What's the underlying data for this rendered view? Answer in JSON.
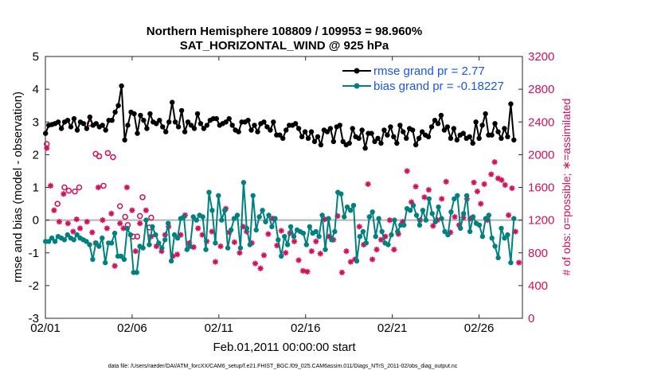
{
  "chart_data": {
    "type": "line",
    "title_line1": "Northern Hemisphere 108809 / 109953 = 98.960%",
    "title_line2": "SAT_HORIZONTAL_WIND @ 925 hPa",
    "xlabel": "Feb.01,2011 00:00:00 start",
    "ylabel": "rmse and bias (model - observation)",
    "ylabel_right": "# of obs: o=possible; ∗=assimilated",
    "footnote": "data file: /Users/raeder/DAI/ATM_forcXX/CAM6_setup/f.e21.FHIST_BGC.f09_025.CAM6assim.011/Diags_NTrS_2011-02/obs_diag_output.nc",
    "x_ticks": [
      "02/01",
      "02/06",
      "02/11",
      "02/16",
      "02/21",
      "02/26"
    ],
    "x_tick_values": [
      0,
      5,
      10,
      15,
      20,
      25
    ],
    "xlim": [
      0,
      27.5
    ],
    "y_ticks": [
      "5",
      "4",
      "3",
      "2",
      "1",
      "0",
      "-1",
      "-2",
      "-3"
    ],
    "ylim": [
      -3,
      5
    ],
    "y_right_ticks": [
      "3200",
      "2800",
      "2400",
      "2000",
      "1600",
      "1200",
      "800",
      "400",
      "0"
    ],
    "ylim_right": [
      0,
      3200
    ],
    "zero_line": 0,
    "colors": {
      "rmse": "#000000",
      "bias": "#008080",
      "obs": "#d0105a",
      "legend_text": "#1a56e8",
      "zero": "#b4b4b4"
    },
    "series": [
      {
        "name": "rmse grand pr = 2.77",
        "values": [
          2.65,
          2.9,
          2.92,
          2.95,
          3.0,
          2.8,
          3.0,
          3.05,
          2.85,
          3.1,
          2.75,
          3.0,
          2.95,
          2.8,
          3.15,
          2.9,
          2.95,
          2.85,
          2.9,
          2.75,
          3.05,
          3.05,
          3.3,
          3.5,
          4.1,
          2.45,
          2.9,
          3.3,
          3.25,
          2.65,
          3.2,
          3.05,
          2.8,
          3.25,
          3.0,
          2.95,
          3.05,
          2.85,
          2.7,
          3.0,
          3.6,
          3.0,
          2.85,
          3.35,
          2.7,
          3.0,
          2.9,
          2.8,
          3.25,
          2.95,
          2.8,
          2.9,
          3.05,
          3.1,
          3.1,
          2.9,
          2.95,
          3.0,
          3.1,
          2.9,
          2.75,
          2.7,
          3.0,
          3.0,
          3.05,
          2.75,
          2.9,
          2.7,
          2.95,
          3.0,
          2.85,
          2.75,
          3.0,
          2.6,
          2.6,
          2.5,
          2.75,
          2.9,
          2.9,
          2.95,
          2.8,
          2.55,
          2.7,
          2.5,
          2.7,
          2.4,
          2.55,
          2.3,
          2.75,
          2.7,
          2.8,
          2.4,
          2.85,
          2.9,
          2.4,
          2.3,
          2.35,
          2.8,
          2.55,
          2.5,
          2.75,
          2.2,
          2.65,
          2.65,
          2.4,
          2.5,
          2.35,
          2.75,
          2.6,
          2.85,
          2.55,
          2.35,
          2.9,
          2.7,
          2.5,
          2.8,
          2.75,
          2.3,
          2.5,
          2.7,
          2.6,
          2.55,
          2.85,
          3.05,
          2.95,
          3.2,
          2.75,
          2.85,
          2.5,
          2.8,
          2.45,
          2.6,
          2.65,
          2.5,
          2.55,
          2.35,
          3.0,
          2.5,
          2.9,
          3.25,
          2.6,
          2.6,
          2.95,
          2.7,
          2.5,
          2.8,
          2.55,
          3.55,
          2.45
        ]
      },
      {
        "name": "bias grand pr = -0.18227",
        "values": [
          -0.65,
          -0.65,
          -0.55,
          -0.65,
          -0.5,
          -0.55,
          -0.6,
          -0.45,
          -0.55,
          -0.6,
          -0.45,
          -0.55,
          -0.6,
          -0.65,
          -0.75,
          -1.2,
          -0.7,
          -0.8,
          -0.55,
          -1.3,
          -0.7,
          -0.7,
          -0.4,
          -1.1,
          -1.1,
          -1.2,
          -0.25,
          -0.45,
          -1.6,
          -1.6,
          -0.8,
          -0.85,
          0.0,
          -0.75,
          -0.2,
          -0.45,
          -0.7,
          -0.85,
          -0.6,
          -0.1,
          -1.25,
          -0.45,
          -0.55,
          0.05,
          0.1,
          -0.9,
          -0.8,
          0.1,
          0.0,
          0.15,
          0.1,
          -0.9,
          0.85,
          0.3,
          -0.7,
          0.75,
          0.0,
          0.3,
          -0.85,
          -0.3,
          0.05,
          0.15,
          -0.85,
          1.15,
          -0.25,
          -0.75,
          0.75,
          -0.3,
          0.1,
          0.3,
          -0.05,
          0.15,
          -0.2,
          0.05,
          -0.6,
          -1.1,
          -0.5,
          -0.75,
          -0.2,
          -0.5,
          -0.3,
          -0.35,
          -0.4,
          -0.75,
          -0.2,
          -0.4,
          -0.35,
          -0.5,
          0.15,
          -0.9,
          0.05,
          -0.6,
          -0.35,
          0.85,
          0.8,
          0.1,
          0.4,
          0.3,
          0.45,
          -1.25,
          -0.5,
          -0.35,
          -0.7,
          0.1,
          0.25,
          -0.5,
          0.05,
          -0.35,
          -0.7,
          -0.75,
          -0.45,
          0.0,
          -0.35,
          -0.15,
          -0.15,
          0.35,
          0.3,
          0.45,
          0.15,
          -0.15,
          0.3,
          0.0,
          0.65,
          0.2,
          -0.05,
          0.4,
          0.05,
          -0.35,
          -0.45,
          0.25,
          0.65,
          0.75,
          -0.25,
          0.2,
          0.75,
          -0.35,
          0.1,
          -0.1,
          -0.15,
          -0.5,
          0.05,
          0.15,
          -0.55,
          -0.8,
          -1.15,
          -0.25,
          -0.55,
          -0.45,
          -1.3,
          0.05
        ]
      }
    ],
    "obs_possible": {
      "x": [
        0.08,
        0.7,
        1.1,
        1.35,
        1.7,
        1.95,
        2.55,
        2.9,
        3.1,
        3.35,
        3.6,
        3.9,
        4.3,
        4.6,
        4.75,
        5.05,
        5.3,
        5.45,
        5.6,
        6.0,
        6.1
      ],
      "values": [
        2130,
        1400,
        1600,
        1560,
        1550,
        1600,
        2380,
        2010,
        1980,
        1620,
        2020,
        1970,
        1370,
        1240,
        1140,
        1000,
        1000,
        1250,
        1480,
        1110,
        1230
      ]
    },
    "obs_assimilated": {
      "x": [
        0.08,
        0.3,
        0.5,
        0.8,
        1.05,
        1.3,
        1.6,
        1.8,
        2.0,
        2.4,
        2.7,
        2.9,
        3.05,
        3.3,
        3.55,
        3.8,
        4.0,
        4.3,
        4.5,
        4.7,
        5.0,
        5.2,
        5.45,
        5.8,
        6.1,
        6.4,
        6.7,
        6.9,
        7.1,
        7.35,
        7.6,
        7.8,
        8.05,
        8.3,
        8.55,
        8.8,
        9.05,
        9.3,
        9.6,
        9.8,
        10.1,
        10.4,
        10.6,
        10.9,
        11.2,
        11.4,
        11.6,
        11.9,
        12.1,
        12.4,
        12.6,
        12.85,
        13.1,
        13.35,
        13.6,
        13.85,
        14.1,
        14.35,
        14.6,
        14.85,
        15.1,
        15.35,
        15.6,
        15.85,
        16.1,
        16.35,
        16.6,
        16.85,
        17.1,
        17.35,
        17.6,
        17.85,
        18.1,
        18.35,
        18.6,
        18.85,
        19.1,
        19.35,
        19.6,
        19.85,
        20.1,
        20.35,
        20.6,
        20.85,
        21.1,
        21.35,
        21.6,
        21.85,
        22.1,
        22.35,
        22.6,
        22.85,
        23.1,
        23.35,
        23.6,
        23.85,
        24.1,
        24.3,
        24.5,
        24.7,
        24.9,
        25.1,
        25.3,
        25.5,
        25.7,
        25.9,
        26.1,
        26.3,
        26.5,
        26.7,
        26.9,
        27.1,
        27.3
      ],
      "values": [
        2080,
        1620,
        1320,
        1180,
        1520,
        1160,
        1060,
        1210,
        1100,
        1180,
        1050,
        920,
        1600,
        1200,
        1100,
        1280,
        640,
        1160,
        1100,
        1600,
        1320,
        820,
        1160,
        1320,
        1000,
        880,
        820,
        1020,
        1120,
        760,
        780,
        1020,
        1260,
        920,
        870,
        1100,
        1020,
        940,
        1060,
        690,
        880,
        1340,
        1050,
        930,
        800,
        1120,
        1060,
        920,
        670,
        610,
        770,
        1030,
        1220,
        890,
        1070,
        800,
        1040,
        940,
        710,
        580,
        570,
        820,
        940,
        790,
        1210,
        1000,
        960,
        1250,
        560,
        820,
        690,
        720,
        1120,
        900,
        1640,
        720,
        840,
        960,
        1000,
        1200,
        840,
        1030,
        1180,
        1800,
        1420,
        1610,
        1200,
        1480,
        1570,
        1130,
        1200,
        1460,
        1670,
        1050,
        1240,
        1140,
        1230,
        1460,
        1220,
        1660,
        1550,
        1400,
        1640,
        1200,
        1760,
        1910,
        1710,
        1690,
        1630,
        1260,
        1590,
        1060,
        680
      ]
    }
  }
}
